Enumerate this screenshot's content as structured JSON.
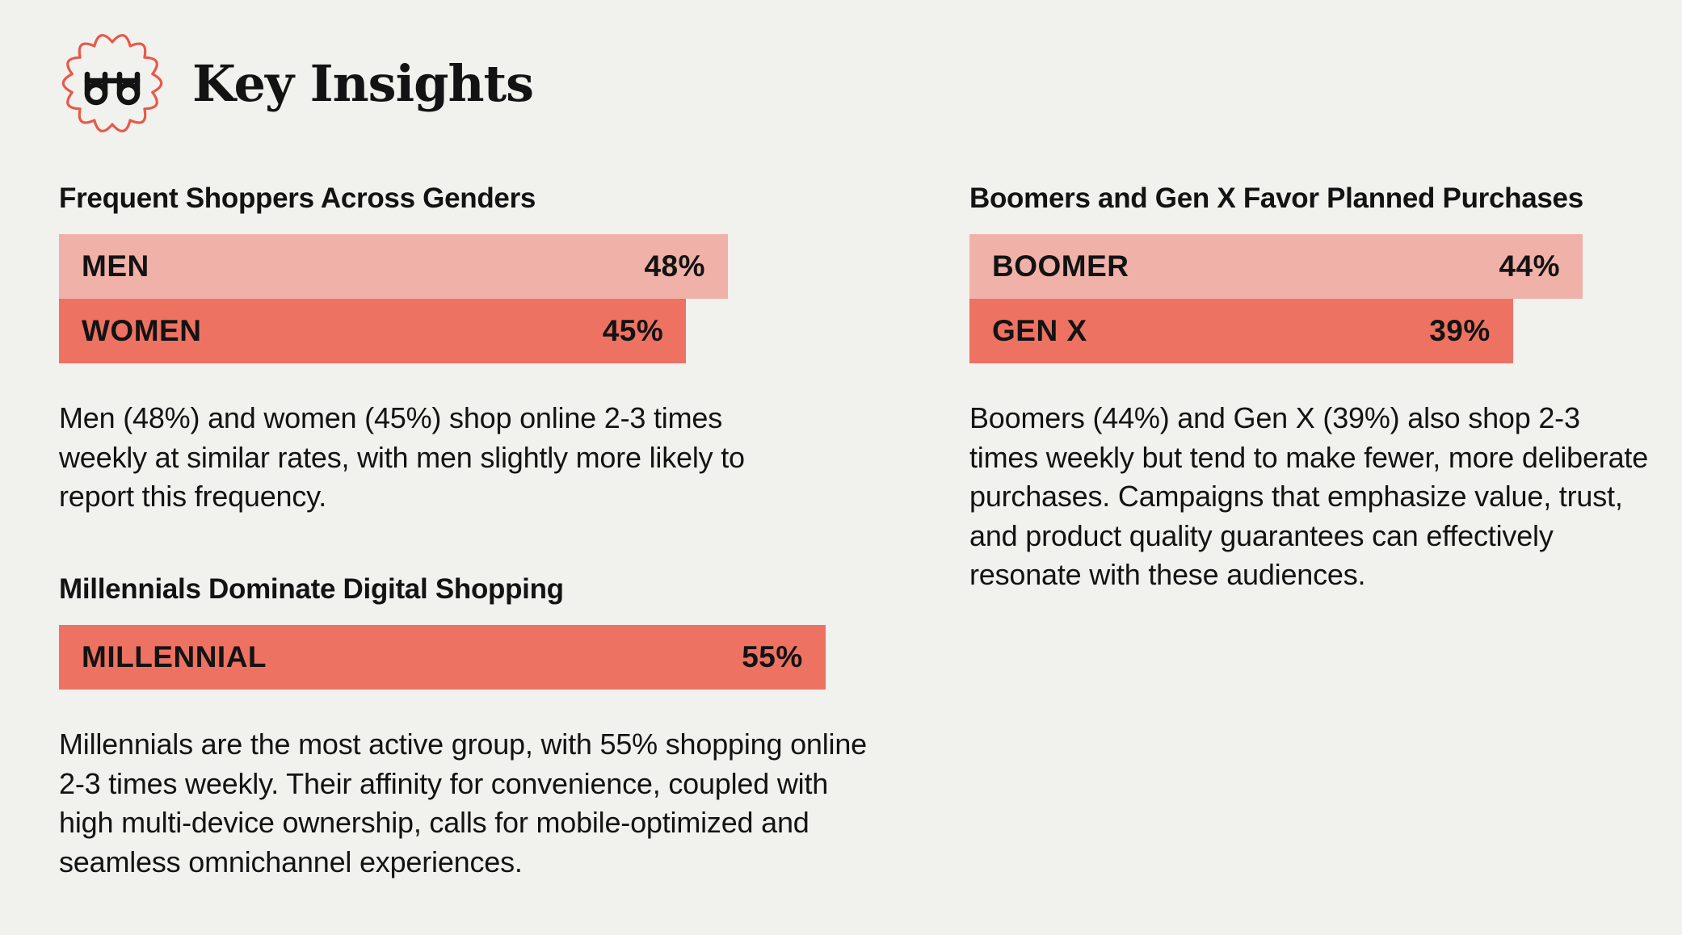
{
  "header": {
    "title": "Key Insights",
    "icon": "binoculars-icon",
    "accent": "#e8584a"
  },
  "sections": {
    "gender": {
      "title": "Frequent Shoppers Across Genders",
      "description": "Men (48%) and women (45%) shop online 2-3 times weekly at similar rates, with men slightly more likely to report this frequency."
    },
    "millennial": {
      "title": "Millennials Dominate Digital Shopping",
      "description": "Millennials are the most active group, with 55% shopping online 2-3 times weekly. Their affinity for convenience, coupled with high multi-device ownership, calls for mobile-optimized and seamless omnichannel experiences."
    },
    "generations": {
      "title": "Boomers and Gen X Favor Planned Purchases",
      "description": "Boomers (44%) and Gen X (39%) also shop 2-3 times weekly but tend to make fewer, more deliberate purchases. Campaigns that emphasize value, trust, and product quality guarantees can effectively resonate with these audiences."
    }
  },
  "chart_data": [
    {
      "type": "bar",
      "orientation": "horizontal",
      "title": "Frequent Shoppers Across Genders",
      "categories": [
        "MEN",
        "WOMEN"
      ],
      "values": [
        48,
        45
      ],
      "value_labels": [
        "48%",
        "45%"
      ],
      "colors": [
        "#f0b2a8",
        "#ee7262"
      ],
      "unit": "%"
    },
    {
      "type": "bar",
      "orientation": "horizontal",
      "title": "Millennials Dominate Digital Shopping",
      "categories": [
        "MILLENNIAL"
      ],
      "values": [
        55
      ],
      "value_labels": [
        "55%"
      ],
      "colors": [
        "#ee7262"
      ],
      "unit": "%"
    },
    {
      "type": "bar",
      "orientation": "horizontal",
      "title": "Boomers and Gen X Favor Planned Purchases",
      "categories": [
        "BOOMER",
        "GEN X"
      ],
      "values": [
        44,
        39
      ],
      "value_labels": [
        "44%",
        "39%"
      ],
      "colors": [
        "#f0b2a8",
        "#ee7262"
      ],
      "unit": "%"
    }
  ]
}
